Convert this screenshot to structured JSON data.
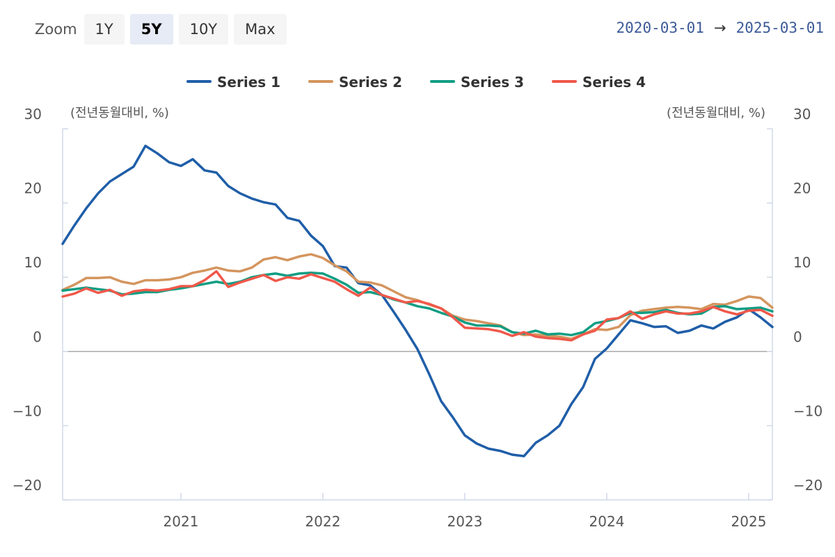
{
  "zoom": {
    "label": "Zoom",
    "buttons": [
      "1Y",
      "5Y",
      "10Y",
      "Max"
    ],
    "active": "5Y"
  },
  "range": {
    "from": "2020-03-01",
    "arrow": "→",
    "to": "2025-03-01"
  },
  "chart_data": {
    "type": "line",
    "left_unit": "(전년동월대비, %)",
    "right_unit": "(전년동월대비, %)",
    "ylim": [
      -20,
      30
    ],
    "yticks": [
      30,
      20,
      10,
      0,
      -10,
      -20
    ],
    "ytick_labels": [
      "30",
      "20",
      "10",
      "0",
      "−10",
      "−20"
    ],
    "xlim": [
      "2020-03",
      "2025-03"
    ],
    "xticks": [
      "2021",
      "2022",
      "2023",
      "2024",
      "2025"
    ],
    "grid": false,
    "legend_position": "top",
    "x": [
      "2020-03",
      "2020-04",
      "2020-05",
      "2020-06",
      "2020-07",
      "2020-08",
      "2020-09",
      "2020-10",
      "2020-11",
      "2020-12",
      "2021-01",
      "2021-02",
      "2021-03",
      "2021-04",
      "2021-05",
      "2021-06",
      "2021-07",
      "2021-08",
      "2021-09",
      "2021-10",
      "2021-11",
      "2021-12",
      "2022-01",
      "2022-02",
      "2022-03",
      "2022-04",
      "2022-05",
      "2022-06",
      "2022-07",
      "2022-08",
      "2022-09",
      "2022-10",
      "2022-11",
      "2022-12",
      "2023-01",
      "2023-02",
      "2023-03",
      "2023-04",
      "2023-05",
      "2023-06",
      "2023-07",
      "2023-08",
      "2023-09",
      "2023-10",
      "2023-11",
      "2023-12",
      "2024-01",
      "2024-02",
      "2024-03",
      "2024-04",
      "2024-05",
      "2024-06",
      "2024-07",
      "2024-08",
      "2024-09",
      "2024-10",
      "2024-11",
      "2024-12",
      "2025-01",
      "2025-02",
      "2025-03"
    ],
    "series": [
      {
        "name": "Series 1",
        "color": "#1f5ea8",
        "values": [
          14.5,
          17.0,
          19.3,
          21.3,
          22.9,
          23.9,
          24.9,
          27.7,
          26.7,
          25.5,
          25.0,
          25.9,
          24.4,
          24.1,
          22.3,
          21.3,
          20.6,
          20.1,
          19.8,
          18.0,
          17.6,
          15.6,
          14.2,
          11.5,
          11.3,
          9.2,
          8.9,
          7.6,
          5.3,
          2.9,
          0.3,
          -3.1,
          -6.7,
          -8.9,
          -11.3,
          -12.4,
          -13.1,
          -13.4,
          -13.9,
          -14.1,
          -12.3,
          -11.3,
          -10.0,
          -7.1,
          -4.8,
          -1.0,
          0.4,
          2.3,
          4.2,
          3.8,
          3.3,
          3.4,
          2.5,
          2.8,
          3.5,
          3.1,
          4.0,
          4.6,
          5.7,
          4.6,
          3.3
        ]
      },
      {
        "name": "Series 2",
        "color": "#d4955e",
        "values": [
          8.3,
          9.0,
          9.9,
          9.9,
          10.0,
          9.4,
          9.1,
          9.6,
          9.6,
          9.7,
          10.0,
          10.6,
          10.9,
          11.3,
          10.9,
          10.8,
          11.3,
          12.4,
          12.7,
          12.3,
          12.8,
          13.1,
          12.6,
          11.6,
          10.8,
          9.4,
          9.3,
          8.9,
          8.1,
          7.3,
          6.9,
          6.3,
          5.8,
          4.8,
          4.3,
          4.1,
          3.8,
          3.5,
          2.6,
          2.2,
          2.3,
          2.1,
          2.0,
          1.7,
          2.3,
          3.0,
          2.9,
          3.3,
          4.9,
          5.5,
          5.7,
          5.9,
          6.0,
          5.9,
          5.7,
          6.4,
          6.3,
          6.8,
          7.4,
          7.2,
          5.9
        ]
      },
      {
        "name": "Series 3",
        "color": "#109d83",
        "values": [
          8.2,
          8.4,
          8.6,
          8.4,
          8.2,
          7.7,
          7.8,
          8.0,
          8.0,
          8.3,
          8.5,
          8.8,
          9.1,
          9.4,
          9.1,
          9.4,
          10.0,
          10.3,
          10.5,
          10.2,
          10.5,
          10.6,
          10.5,
          9.8,
          9.0,
          7.9,
          8.0,
          7.6,
          7.0,
          6.6,
          6.1,
          5.8,
          5.2,
          4.7,
          3.9,
          3.5,
          3.5,
          3.4,
          2.6,
          2.4,
          2.8,
          2.3,
          2.4,
          2.2,
          2.6,
          3.8,
          4.1,
          4.5,
          5.2,
          5.2,
          5.3,
          5.6,
          5.2,
          5.0,
          5.1,
          6.0,
          6.1,
          5.7,
          5.8,
          5.9,
          5.4
        ]
      },
      {
        "name": "Series 4",
        "color": "#f0584a",
        "values": [
          7.4,
          7.8,
          8.5,
          7.9,
          8.3,
          7.5,
          8.1,
          8.3,
          8.2,
          8.4,
          8.8,
          8.8,
          9.6,
          10.8,
          8.7,
          9.3,
          9.8,
          10.3,
          9.5,
          10.0,
          9.8,
          10.4,
          9.9,
          9.4,
          8.4,
          7.5,
          8.6,
          7.6,
          7.1,
          6.6,
          6.8,
          6.4,
          5.8,
          4.6,
          3.2,
          3.1,
          3.0,
          2.7,
          2.1,
          2.6,
          2.0,
          1.8,
          1.7,
          1.5,
          2.3,
          2.8,
          4.3,
          4.5,
          5.4,
          4.4,
          5.0,
          5.4,
          5.1,
          5.1,
          5.4,
          6.0,
          5.4,
          5.0,
          5.5,
          5.6,
          4.8
        ]
      }
    ]
  }
}
